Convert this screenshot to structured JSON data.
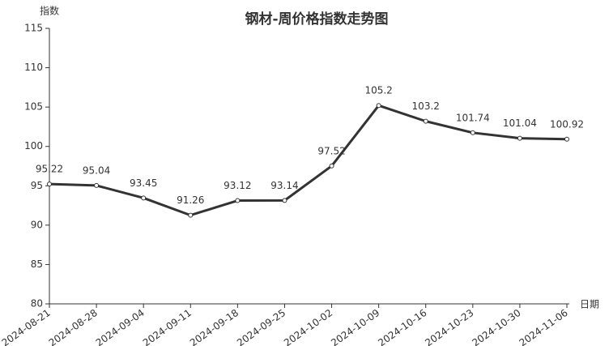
{
  "chart_data": {
    "type": "line",
    "title": "钢材-周价格指数走势图",
    "y_label": "指数",
    "x_label": "日期",
    "categories": [
      "2024-08-21",
      "2024-08-28",
      "2024-09-04",
      "2024-09-11",
      "2024-09-18",
      "2024-09-25",
      "2024-10-02",
      "2024-10-09",
      "2024-10-16",
      "2024-10-23",
      "2024-10-30",
      "2024-11-06"
    ],
    "values": [
      95.22,
      95.04,
      93.45,
      91.26,
      93.12,
      93.14,
      97.52,
      105.2,
      103.2,
      101.74,
      101.04,
      100.92
    ],
    "color": "#333333",
    "ylim": [
      80,
      115
    ],
    "yticks": [
      80,
      85,
      90,
      95,
      100,
      105,
      110,
      115
    ],
    "grid": false
  }
}
